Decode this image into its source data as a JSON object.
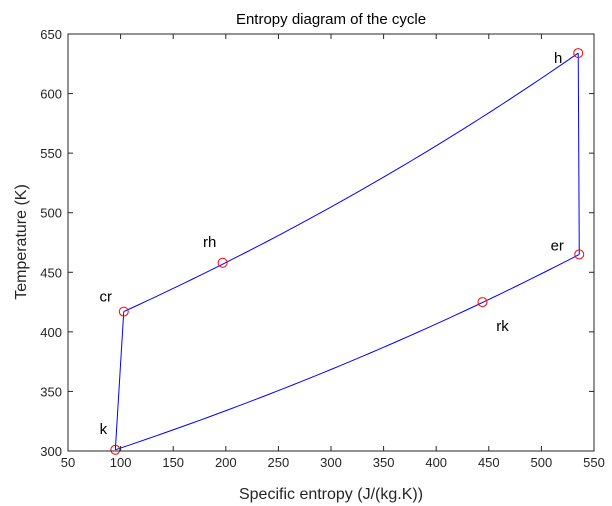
{
  "chart_data": {
    "type": "line",
    "title": "Entropy diagram of the cycle",
    "xlabel": "Specific entropy (J/(kg.K))",
    "ylabel": "Temperature (K)",
    "xlim": [
      50,
      550
    ],
    "ylim": [
      300,
      650
    ],
    "xticks": [
      "50",
      "100",
      "150",
      "200",
      "250",
      "300",
      "350",
      "400",
      "450",
      "500",
      "550"
    ],
    "yticks": [
      "300",
      "350",
      "400",
      "450",
      "500",
      "550",
      "600",
      "650"
    ],
    "grid": false,
    "line_color": "#0000ff",
    "marker_color": "#ff0000",
    "points": [
      {
        "label": "k",
        "x": 95,
        "y": 301
      },
      {
        "label": "cr",
        "x": 103,
        "y": 417
      },
      {
        "label": "rh",
        "x": 197,
        "y": 458
      },
      {
        "label": "h",
        "x": 535,
        "y": 634
      },
      {
        "label": "er",
        "x": 536,
        "y": 465
      },
      {
        "label": "rk",
        "x": 444,
        "y": 425
      }
    ],
    "segments": [
      {
        "from": "k",
        "to": "cr",
        "shape": "straight"
      },
      {
        "from": "cr",
        "to": "h",
        "shape": "curve"
      },
      {
        "from": "h",
        "to": "er",
        "shape": "straight"
      },
      {
        "from": "er",
        "to": "k",
        "shape": "curve"
      }
    ]
  }
}
